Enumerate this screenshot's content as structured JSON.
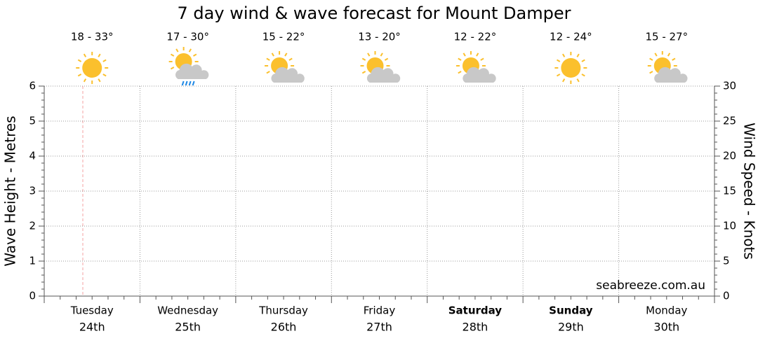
{
  "chart_data": {
    "type": "line",
    "title": "7 day wind & wave forecast for Mount Damper",
    "y_label": "Wave Height - Metres",
    "y2_label": "Wind Speed - Knots",
    "categories": [
      "Tuesday",
      "Wednesday",
      "Thursday",
      "Friday",
      "Saturday",
      "Sunday",
      "Monday"
    ],
    "dates": [
      "24th",
      "25th",
      "26th",
      "27th",
      "28th",
      "29th",
      "30th"
    ],
    "temperatures": [
      "18 - 33°",
      "17 - 30°",
      "15 - 22°",
      "13 - 20°",
      "12 - 22°",
      "12 - 24°",
      "15 - 27°"
    ],
    "icons": [
      "sunny",
      "rain",
      "partly-cloudy",
      "partly-cloudy",
      "partly-cloudy",
      "sunny",
      "partly-cloudy"
    ],
    "bold": [
      false,
      false,
      false,
      false,
      true,
      true,
      false
    ],
    "ylim": [
      0,
      6
    ],
    "yticks": [
      0,
      1,
      2,
      3,
      4,
      5,
      6
    ],
    "y2lim": [
      0,
      30
    ],
    "y2ticks": [
      0,
      5,
      10,
      15,
      20,
      25,
      30
    ],
    "grid": true,
    "watermark": "seabreeze.com.au"
  }
}
